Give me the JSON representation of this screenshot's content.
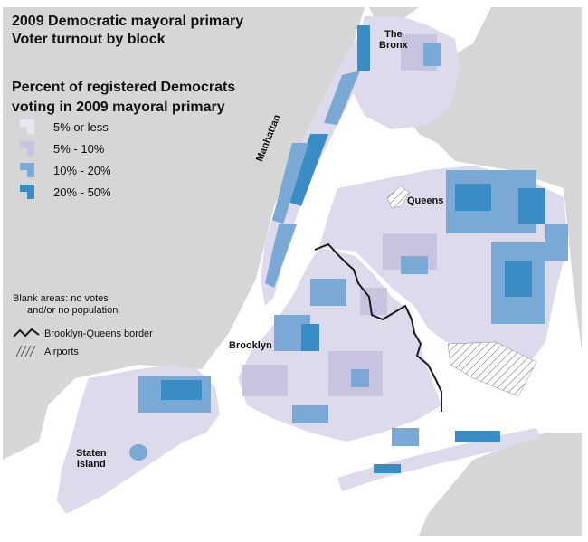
{
  "title": {
    "line1": "2009 Democratic mayoral primary",
    "line2": "Voter turnout by block"
  },
  "legend": {
    "title_line1": "Percent of registered Democrats",
    "title_line2": "voting in 2009 mayoral primary",
    "items": [
      {
        "label": "5% or less",
        "color": "#e8e6f2"
      },
      {
        "label": "5% - 10%",
        "color": "#c7c4df"
      },
      {
        "label": "10% - 20%",
        "color": "#7ba9d6"
      },
      {
        "label": "20% - 50%",
        "color": "#3a8cc4"
      }
    ]
  },
  "note": {
    "line1": "Blank areas: no votes",
    "line2": "and/or no population"
  },
  "aux_legend": {
    "border_label": "Brooklyn-Queens border",
    "airports_label": "Airports"
  },
  "places": {
    "bronx_line1": "The",
    "bronx_line2": "Bronx",
    "manhattan": "Manhattan",
    "queens": "Queens",
    "brooklyn": "Brooklyn",
    "staten_line1": "Staten",
    "staten_line2": "Island"
  },
  "colors": {
    "water": "#ffffff",
    "land_other": "#d6d6d6",
    "borough_base": "#dcdaeb",
    "border_line": "#1a1a1a"
  }
}
